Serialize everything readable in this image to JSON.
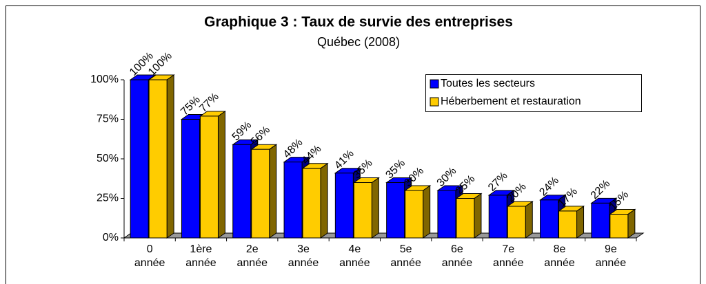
{
  "chart_data": {
    "type": "bar3d",
    "title": "Graphique 3 : Taux de survie des entreprises",
    "subtitle": "Québec (2008)",
    "categories": [
      "0 année",
      "1ère année",
      "2e année",
      "3e année",
      "4e année",
      "5e année",
      "6e année",
      "7e année",
      "8e année",
      "9e année"
    ],
    "series": [
      {
        "name": "Toutes les secteurs",
        "color": "#0000ff",
        "side": "#000080",
        "values": [
          100,
          75,
          59,
          48,
          41,
          35,
          30,
          27,
          24,
          22
        ],
        "value_labels": [
          "100%",
          "75%",
          "59%",
          "48%",
          "41%",
          "35%",
          "30%",
          "27%",
          "24%",
          "22%"
        ]
      },
      {
        "name": "Héberbement et restauration",
        "color": "#ffcc00",
        "side": "#806600",
        "values": [
          100,
          77,
          56,
          44,
          35,
          30,
          25,
          20,
          17,
          15
        ],
        "value_labels": [
          "100%",
          "77%",
          "56%",
          "44%",
          "35%",
          "30%",
          "25%",
          "20%",
          "17%",
          "15%"
        ]
      }
    ],
    "ylim": [
      0,
      100
    ],
    "yticks": [
      {
        "value": 0,
        "label": "0%"
      },
      {
        "value": 25,
        "label": "25%"
      },
      {
        "value": 50,
        "label": "50%"
      },
      {
        "value": 75,
        "label": "75%"
      },
      {
        "value": 100,
        "label": "100%"
      }
    ],
    "legend": "top-right"
  }
}
